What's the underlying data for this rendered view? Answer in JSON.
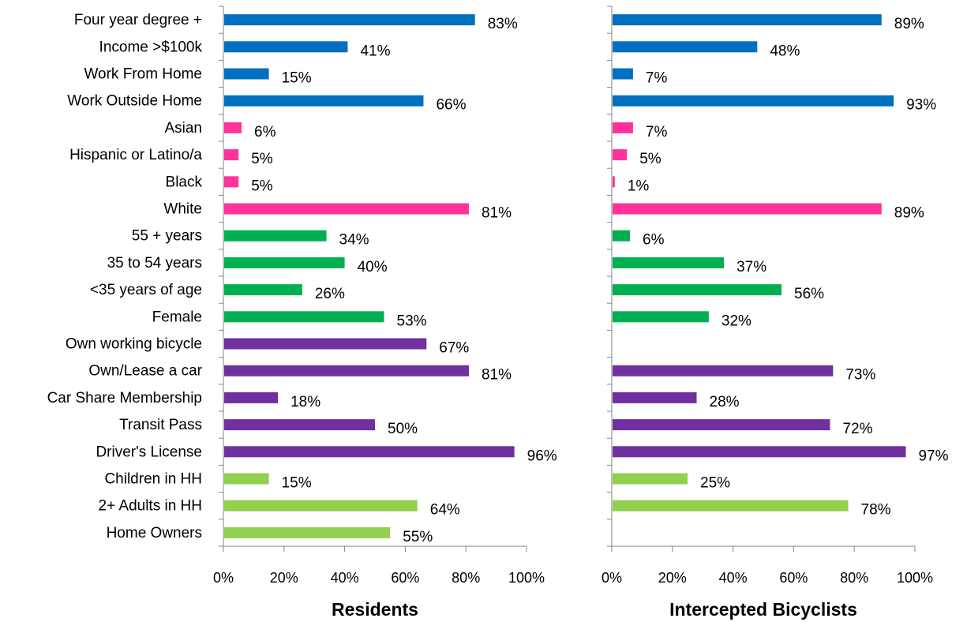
{
  "chart_data": {
    "type": "bar",
    "orientation": "horizontal",
    "categories": [
      "Four year degree +",
      "Income >$100k",
      "Work From Home",
      "Work Outside Home",
      "Asian",
      "Hispanic or Latino/a",
      "Black",
      "White",
      "55 + years",
      "35 to 54 years",
      "<35 years of age",
      "Female",
      "Own working bicycle",
      "Own/Lease a car",
      "Car Share Membership",
      "Transit Pass",
      "Driver's License",
      "Children in HH",
      "2+ Adults in HH",
      "Home Owners"
    ],
    "category_groups": [
      "education-income-work",
      "education-income-work",
      "education-income-work",
      "education-income-work",
      "race",
      "race",
      "race",
      "race",
      "age-gender",
      "age-gender",
      "age-gender",
      "age-gender",
      "mobility",
      "mobility",
      "mobility",
      "mobility",
      "mobility",
      "household",
      "household",
      "household"
    ],
    "group_colors": {
      "education-income-work": "#0070C0",
      "race": "#FF3399",
      "age-gender": "#00B050",
      "mobility": "#7030A0",
      "household": "#92D050"
    },
    "xlim": [
      0,
      100
    ],
    "x_ticks": [
      "0%",
      "20%",
      "40%",
      "60%",
      "80%",
      "100%"
    ],
    "grid": false,
    "panels": [
      {
        "title": "Residents",
        "values": [
          83,
          41,
          15,
          66,
          6,
          5,
          5,
          81,
          34,
          40,
          26,
          53,
          67,
          81,
          18,
          50,
          96,
          15,
          64,
          55
        ],
        "labels": [
          "83%",
          "41%",
          "15%",
          "66%",
          "6%",
          "5%",
          "5%",
          "81%",
          "34%",
          "40%",
          "26%",
          "53%",
          "67%",
          "81%",
          "18%",
          "50%",
          "96%",
          "15%",
          "64%",
          "55%"
        ]
      },
      {
        "title": "Intercepted Bicyclists",
        "values": [
          89,
          48,
          7,
          93,
          7,
          5,
          1,
          89,
          6,
          37,
          56,
          32,
          null,
          73,
          28,
          72,
          97,
          25,
          78,
          null
        ],
        "labels": [
          "89%",
          "48%",
          "7%",
          "93%",
          "7%",
          "5%",
          "1%",
          "89%",
          "6%",
          "37%",
          "56%",
          "32%",
          "",
          "73%",
          "28%",
          "72%",
          "97%",
          "25%",
          "78%",
          ""
        ]
      }
    ]
  }
}
